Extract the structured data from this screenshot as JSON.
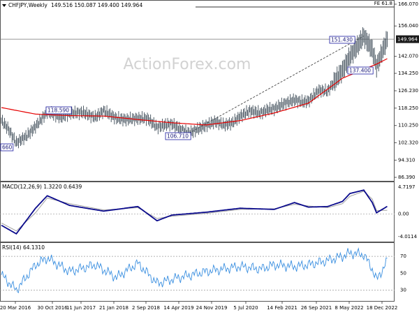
{
  "header": {
    "symbol": "CHFJPY,Weekly",
    "ohlc": "149.516 150.087 149.400 149.964"
  },
  "watermark": "ActionForex.com",
  "colors": {
    "price": "#3d4b57",
    "ma": "#e60000",
    "macd": "#0a0a8c",
    "signal": "#a0a0a0",
    "rsi": "#3a8fe0",
    "trend": "#444444",
    "level_line": "#333333",
    "label_border": "#1a1aa0",
    "current_tag_bg": "#1a1a1a"
  },
  "chart_data": [
    {
      "type": "line",
      "panel": "price",
      "title": "CHFJPY,Weekly",
      "ylim": [
        86.39,
        166.07
      ],
      "y_ticks": [
        "166.070",
        "156.040",
        "149.964",
        "142.070",
        "134.250",
        "126.230",
        "118.250",
        "110.250",
        "102.320",
        "94.310",
        "86.390"
      ],
      "x_ticks": [
        "20 Mar 2016",
        "30 Oct 2016",
        "11 Jun 2017",
        "21 Jan 2018",
        "2 Sep 2018",
        "14 Apr 2019",
        "24 Nov 2019",
        "5 Jul 2020",
        "14 Feb 2021",
        "26 Sep 2021",
        "8 May 2022",
        "18 Dec 2022"
      ],
      "series": [
        {
          "role": "price",
          "x": [
            "2016-03-20",
            "2016-05-01",
            "2016-06-26",
            "2016-09-04",
            "2016-10-30",
            "2017-01-15",
            "2017-04-16",
            "2017-06-11",
            "2017-09-03",
            "2017-11-26",
            "2018-01-21",
            "2018-04-15",
            "2018-06-17",
            "2018-09-02",
            "2018-11-04",
            "2019-01-06",
            "2019-03-03",
            "2019-04-14",
            "2019-06-02",
            "2019-08-04",
            "2019-09-29",
            "2019-11-24",
            "2020-01-26",
            "2020-03-22",
            "2020-05-17",
            "2020-07-05",
            "2020-09-06",
            "2020-11-15",
            "2021-01-03",
            "2021-02-14",
            "2021-04-25",
            "2021-06-27",
            "2021-08-22",
            "2021-09-26",
            "2021-12-05",
            "2022-01-30",
            "2022-03-27",
            "2022-05-08",
            "2022-06-26",
            "2022-08-07",
            "2022-09-25",
            "2022-11-20",
            "2022-12-18",
            "2023-01-15",
            "2023-02-26"
          ],
          "y": [
            112.5,
            109.0,
            102.3,
            105.5,
            109.8,
            116.5,
            114.0,
            115.8,
            116.3,
            114.0,
            117.0,
            113.5,
            113.0,
            113.5,
            113.5,
            109.5,
            110.5,
            111.0,
            108.8,
            106.71,
            108.5,
            110.3,
            112.0,
            110.5,
            111.5,
            114.5,
            117.0,
            116.0,
            117.5,
            118.0,
            120.5,
            122.0,
            121.0,
            121.5,
            126.5,
            126.0,
            131.5,
            135.5,
            142.0,
            146.0,
            151.43,
            145.0,
            137.4,
            142.5,
            149.964
          ]
        },
        {
          "role": "moving-average",
          "x": [
            "2016-03-20",
            "2016-10-30",
            "2017-06-11",
            "2018-01-21",
            "2018-09-02",
            "2019-04-14",
            "2019-11-24",
            "2020-07-05",
            "2021-02-14",
            "2021-09-26",
            "2022-05-08",
            "2022-12-18",
            "2023-02-26"
          ],
          "y": [
            118.5,
            115.5,
            114.8,
            114.6,
            113.0,
            111.5,
            110.5,
            112.5,
            116.0,
            120.5,
            132.0,
            138.5,
            141.0
          ]
        }
      ],
      "annotations": [
        "151.430",
        "118.590",
        "137.400",
        "106.710",
        "660",
        "FE 61.8"
      ],
      "current_price": "149.964"
    },
    {
      "type": "line",
      "panel": "macd",
      "title": "MACD(12,26,9) 1.3220 0.6439",
      "ylim": [
        -4.0114,
        4.7197
      ],
      "y_ticks": [
        "4.7197",
        "0.00",
        "-4.0114"
      ],
      "series": [
        {
          "role": "macd",
          "x": [
            "2016-03-20",
            "2016-06-26",
            "2016-10-30",
            "2017-01-15",
            "2017-06-11",
            "2018-01-21",
            "2018-09-02",
            "2019-01-06",
            "2019-04-14",
            "2019-11-24",
            "2020-07-05",
            "2021-02-14",
            "2021-06-27",
            "2021-09-26",
            "2022-01-30",
            "2022-05-08",
            "2022-06-26",
            "2022-09-25",
            "2022-11-20",
            "2022-12-18",
            "2023-02-26"
          ],
          "y": [
            -2.0,
            -3.5,
            1.0,
            3.2,
            1.5,
            0.5,
            1.3,
            -1.2,
            -0.2,
            0.3,
            1.0,
            0.8,
            2.0,
            1.2,
            1.3,
            2.2,
            3.6,
            4.2,
            2.0,
            0.2,
            1.322
          ]
        },
        {
          "role": "signal",
          "x": [
            "2016-03-20",
            "2016-06-26",
            "2016-10-30",
            "2017-01-15",
            "2017-06-11",
            "2018-01-21",
            "2018-09-02",
            "2019-01-06",
            "2019-04-14",
            "2019-11-24",
            "2020-07-05",
            "2021-02-14",
            "2021-06-27",
            "2021-09-26",
            "2022-01-30",
            "2022-05-08",
            "2022-06-26",
            "2022-09-25",
            "2022-11-20",
            "2022-12-18",
            "2023-02-26"
          ],
          "y": [
            -1.6,
            -3.0,
            0.2,
            2.8,
            1.8,
            0.7,
            1.1,
            -0.8,
            -0.4,
            0.1,
            0.8,
            0.9,
            1.7,
            1.4,
            1.1,
            1.8,
            3.1,
            4.0,
            2.6,
            0.6,
            0.6439
          ]
        }
      ]
    },
    {
      "type": "line",
      "panel": "rsi",
      "title": "RSI(14) 64.1310",
      "ylim": [
        18,
        85
      ],
      "y_ticks": [
        "70",
        "50",
        "30"
      ],
      "series": [
        {
          "role": "rsi",
          "x": [
            "2016-03-20",
            "2016-06-26",
            "2016-10-30",
            "2017-01-15",
            "2017-06-11",
            "2017-11-26",
            "2018-04-15",
            "2018-09-02",
            "2019-01-06",
            "2019-06-02",
            "2019-11-24",
            "2020-07-05",
            "2020-11-15",
            "2021-02-14",
            "2021-06-27",
            "2021-09-26",
            "2022-01-30",
            "2022-05-08",
            "2022-06-26",
            "2022-09-25",
            "2022-11-20",
            "2022-12-18",
            "2023-02-26"
          ],
          "y": [
            48,
            30,
            60,
            68,
            52,
            60,
            45,
            62,
            38,
            45,
            52,
            58,
            55,
            60,
            58,
            60,
            65,
            70,
            74,
            72,
            55,
            42,
            64.131
          ]
        }
      ]
    }
  ]
}
